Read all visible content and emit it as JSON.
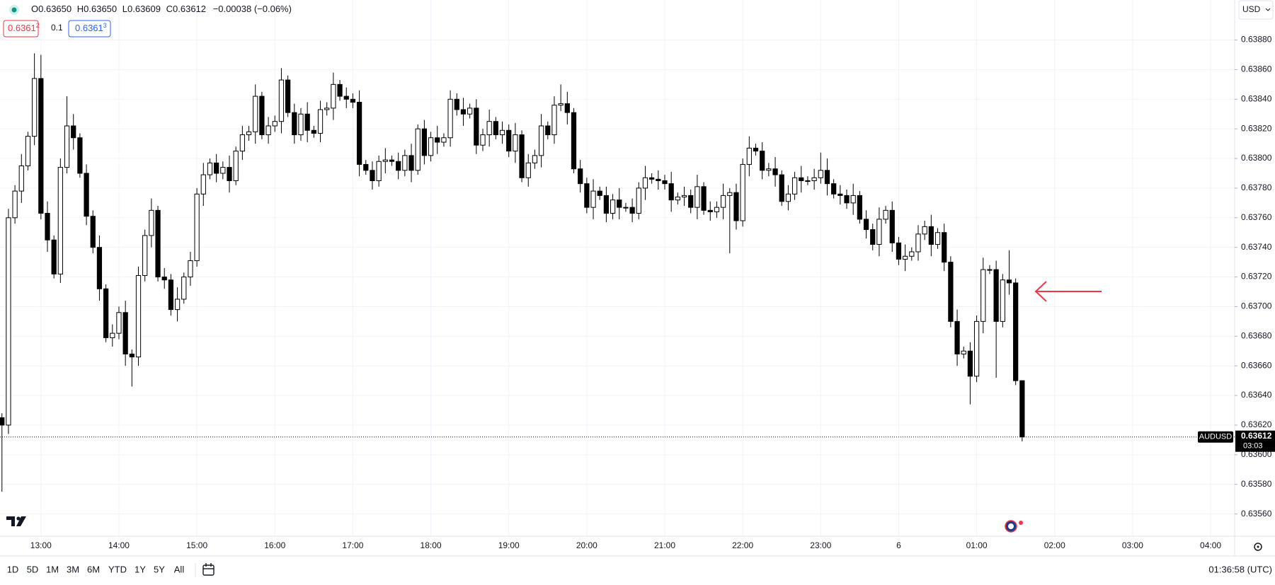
{
  "legend": [
    [
      "O",
      "0.63650"
    ],
    [
      "H",
      "0.63650"
    ],
    [
      "L",
      "0.63609"
    ],
    [
      "C",
      "0.63612"
    ]
  ],
  "change": "−0.00038 (−0.06%)",
  "badges": {
    "sell": {
      "main": "0.6361",
      "sup": "2"
    },
    "spread": "0.1",
    "buy": {
      "main": "0.6361",
      "sup": "3"
    }
  },
  "currency": "USD",
  "symbol": "AUDUSD",
  "countdown": "03:03",
  "ranges": [
    "1D",
    "5D",
    "1M",
    "3M",
    "6M",
    "YTD",
    "1Y",
    "5Y",
    "All"
  ],
  "clock": "01:36:58 (UTC)",
  "chart_data": {
    "type": "candlestick",
    "up_color": "#ffffff",
    "down_color": "#000000",
    "wick_color": "#000000",
    "grid": true,
    "last_price": 0.63612,
    "ylim": [
      0.63545,
      0.63907
    ],
    "yticks": [
      {
        "value": 0.6356,
        "label": "0.63560"
      },
      {
        "value": 0.6358,
        "label": "0.63580"
      },
      {
        "value": 0.636,
        "label": "0.63600"
      },
      {
        "value": 0.6362,
        "label": "0.63620"
      },
      {
        "value": 0.6364,
        "label": "0.63640"
      },
      {
        "value": 0.6366,
        "label": "0.63660"
      },
      {
        "value": 0.6368,
        "label": "0.63680"
      },
      {
        "value": 0.637,
        "label": "0.63700"
      },
      {
        "value": 0.6372,
        "label": "0.63720"
      },
      {
        "value": 0.6374,
        "label": "0.63740"
      },
      {
        "value": 0.6376,
        "label": "0.63760"
      },
      {
        "value": 0.6378,
        "label": "0.63780"
      },
      {
        "value": 0.638,
        "label": "0.63800"
      },
      {
        "value": 0.6382,
        "label": "0.63820"
      },
      {
        "value": 0.6384,
        "label": "0.63840"
      },
      {
        "value": 0.6386,
        "label": "0.63860"
      },
      {
        "value": 0.6388,
        "label": "0.63880"
      }
    ],
    "categories": [
      null,
      null,
      null,
      null,
      null,
      null,
      "13:00",
      null,
      null,
      null,
      null,
      null,
      null,
      null,
      null,
      null,
      null,
      null,
      "14:00",
      null,
      null,
      null,
      null,
      null,
      null,
      null,
      null,
      null,
      null,
      null,
      "15:00",
      null,
      null,
      null,
      null,
      null,
      null,
      null,
      null,
      null,
      null,
      null,
      "16:00",
      null,
      null,
      null,
      null,
      null,
      null,
      null,
      null,
      null,
      null,
      null,
      "17:00",
      null,
      null,
      null,
      null,
      null,
      null,
      null,
      null,
      null,
      null,
      null,
      "18:00",
      null,
      null,
      null,
      null,
      null,
      null,
      null,
      null,
      null,
      null,
      null,
      "19:00",
      null,
      null,
      null,
      null,
      null,
      null,
      null,
      null,
      null,
      null,
      null,
      "20:00",
      null,
      null,
      null,
      null,
      null,
      null,
      null,
      null,
      null,
      null,
      null,
      "21:00",
      null,
      null,
      null,
      null,
      null,
      null,
      null,
      null,
      null,
      null,
      null,
      "22:00",
      null,
      null,
      null,
      null,
      null,
      null,
      null,
      null,
      null,
      null,
      null,
      "23:00",
      null,
      null,
      null,
      null,
      null,
      null,
      null,
      null,
      null,
      null,
      null,
      "6",
      null,
      null,
      null,
      null,
      null,
      null,
      null,
      null,
      null,
      null,
      null,
      "01:00",
      null,
      null,
      null,
      null,
      null,
      null,
      null,
      null,
      null,
      null,
      null,
      "02:00",
      null,
      null,
      null,
      null,
      null,
      null,
      null,
      null,
      null,
      null,
      null,
      "03:00",
      null,
      null,
      null,
      null,
      null,
      null,
      null,
      null,
      null,
      null,
      null,
      "04:00",
      null,
      null,
      null
    ],
    "open": [
      0.63625,
      0.6362,
      0.6376,
      0.63778,
      0.63795,
      0.63815,
      0.63854,
      0.63763,
      0.63745,
      0.63722,
      0.63794,
      0.63822,
      0.63814,
      0.6379,
      0.63761,
      0.6374,
      0.63712,
      0.63679,
      0.63682,
      0.63696,
      0.63668,
      0.63666,
      0.63721,
      0.63748,
      0.63765,
      0.6372,
      0.63718,
      0.63698,
      0.63705,
      0.6372,
      0.63731,
      0.63776,
      0.63789,
      0.63797,
      0.6379,
      0.63794,
      0.63785,
      0.63805,
      0.63816,
      0.63818,
      0.63842,
      0.63816,
      0.63822,
      0.63825,
      0.63853,
      0.63831,
      0.63816,
      0.6383,
      0.63819,
      0.63817,
      0.63833,
      0.63834,
      0.6385,
      0.63842,
      0.6384,
      0.63838,
      0.63796,
      0.63792,
      0.63785,
      0.63798,
      0.63799,
      0.63798,
      0.63792,
      0.63802,
      0.63792,
      0.6382,
      0.63802,
      0.63814,
      0.63811,
      0.63814,
      0.6384,
      0.63833,
      0.6383,
      0.63834,
      0.63809,
      0.63816,
      0.63825,
      0.63816,
      0.63819,
      0.63805,
      0.63816,
      0.63787,
      0.63797,
      0.63802,
      0.63822,
      0.63816,
      0.63836,
      0.63837,
      0.63831,
      0.63793,
      0.63783,
      0.63767,
      0.63778,
      0.63775,
      0.63763,
      0.63772,
      0.63767,
      0.63767,
      0.63763,
      0.6378,
      0.63787,
      0.63786,
      0.63785,
      0.63783,
      0.63772,
      0.63774,
      0.63775,
      0.63767,
      0.63781,
      0.63765,
      0.63764,
      0.63767,
      0.63775,
      0.63777,
      0.63758,
      0.63796,
      0.63807,
      0.63805,
      0.63792,
      0.63793,
      0.63789,
      0.63771,
      0.63776,
      0.63787,
      0.63785,
      0.63785,
      0.63787,
      0.63792,
      0.63783,
      0.63776,
      0.63775,
      0.6377,
      0.63775,
      0.63759,
      0.63752,
      0.63742,
      0.63759,
      0.63765,
      0.63743,
      0.63732,
      0.63734,
      0.63737,
      0.63749,
      0.63754,
      0.63742,
      0.6375,
      0.6373,
      0.6369,
      0.63668,
      0.6367,
      0.63653,
      0.6369,
      0.63725,
      0.63725,
      0.6369,
      0.63718,
      0.63716,
      0.6365,
      null,
      null,
      null,
      null,
      null,
      null,
      null,
      null,
      null,
      null,
      null,
      null,
      null,
      null,
      null,
      null,
      null,
      null,
      null,
      null,
      null,
      null,
      null,
      null,
      null,
      null,
      null,
      null,
      null,
      null,
      null,
      null
    ],
    "high": [
      0.63628,
      0.63766,
      0.63782,
      0.63803,
      0.63818,
      0.63871,
      0.6387,
      0.63771,
      0.63748,
      0.638,
      0.63842,
      0.6383,
      0.63817,
      0.63796,
      0.63765,
      0.63748,
      0.63715,
      0.63688,
      0.637,
      0.63704,
      0.63671,
      0.63727,
      0.63752,
      0.63773,
      0.63768,
      0.63726,
      0.63722,
      0.63713,
      0.63723,
      0.63737,
      0.6378,
      0.63797,
      0.638,
      0.63803,
      0.63798,
      0.63802,
      0.63808,
      0.63822,
      0.63822,
      0.6385,
      0.63845,
      0.63828,
      0.63829,
      0.63861,
      0.63856,
      0.63837,
      0.63834,
      0.63838,
      0.63822,
      0.63839,
      0.63838,
      0.63858,
      0.63853,
      0.63848,
      0.63844,
      0.63846,
      0.63799,
      0.63798,
      0.63802,
      0.63807,
      0.63802,
      0.63804,
      0.63806,
      0.6381,
      0.63823,
      0.63826,
      0.63818,
      0.63822,
      0.63817,
      0.63846,
      0.63844,
      0.63841,
      0.63837,
      0.6384,
      0.6382,
      0.63833,
      0.63828,
      0.63825,
      0.63823,
      0.63824,
      0.63819,
      0.63803,
      0.63806,
      0.6383,
      0.63825,
      0.63842,
      0.6385,
      0.63845,
      0.63834,
      0.63799,
      0.63787,
      0.63786,
      0.63781,
      0.63781,
      0.63776,
      0.6378,
      0.6377,
      0.63773,
      0.63784,
      0.63795,
      0.6379,
      0.63792,
      0.63789,
      0.63791,
      0.63777,
      0.63781,
      0.63779,
      0.63789,
      0.63784,
      0.63771,
      0.63771,
      0.63783,
      0.6378,
      0.63783,
      0.638,
      0.63815,
      0.6381,
      0.63811,
      0.63797,
      0.63801,
      0.63792,
      0.63782,
      0.63791,
      0.63795,
      0.63788,
      0.63793,
      0.63804,
      0.638,
      0.63786,
      0.63782,
      0.63779,
      0.63783,
      0.63778,
      0.63765,
      0.63756,
      0.63767,
      0.63768,
      0.63771,
      0.63747,
      0.63742,
      0.6374,
      0.63755,
      0.63758,
      0.63762,
      0.63753,
      0.63756,
      0.63734,
      0.63698,
      0.63673,
      0.63676,
      0.63694,
      0.63733,
      0.63728,
      0.63731,
      0.63722,
      0.63738,
      0.63719,
      0.6365,
      null,
      null,
      null,
      null,
      null,
      null,
      null,
      null,
      null,
      null,
      null,
      null,
      null,
      null,
      null,
      null,
      null,
      null,
      null,
      null,
      null,
      null,
      null,
      null,
      null,
      null,
      null,
      null,
      null,
      null,
      null,
      null
    ],
    "low": [
      0.63575,
      0.63614,
      0.63756,
      0.6377,
      0.63792,
      0.63809,
      0.63759,
      0.63737,
      0.63719,
      0.63716,
      0.6379,
      0.63806,
      0.63787,
      0.63755,
      0.63736,
      0.63704,
      0.63676,
      0.63673,
      0.63678,
      0.6366,
      0.63646,
      0.6366,
      0.63717,
      0.6374,
      0.63717,
      0.63712,
      0.63694,
      0.6369,
      0.63702,
      0.63714,
      0.63727,
      0.63768,
      0.63786,
      0.63784,
      0.63786,
      0.63777,
      0.63782,
      0.63799,
      0.63812,
      0.6381,
      0.63813,
      0.6381,
      0.63818,
      0.63817,
      0.63828,
      0.6381,
      0.63812,
      0.63811,
      0.63814,
      0.63811,
      0.63829,
      0.63826,
      0.63839,
      0.63834,
      0.63834,
      0.63788,
      0.63789,
      0.63779,
      0.63781,
      0.6379,
      0.63795,
      0.63786,
      0.63788,
      0.63784,
      0.63789,
      0.63796,
      0.63798,
      0.63803,
      0.63808,
      0.63808,
      0.63829,
      0.63822,
      0.63827,
      0.63803,
      0.63805,
      0.63808,
      0.63813,
      0.6381,
      0.63801,
      0.63797,
      0.63784,
      0.63781,
      0.63793,
      0.63794,
      0.63813,
      0.6381,
      0.63832,
      0.63823,
      0.6379,
      0.63777,
      0.63763,
      0.63759,
      0.63772,
      0.63757,
      0.63759,
      0.63759,
      0.63764,
      0.63757,
      0.63759,
      0.63772,
      0.63783,
      0.63779,
      0.63779,
      0.63764,
      0.63769,
      0.63768,
      0.63763,
      0.63759,
      0.63762,
      0.63758,
      0.6376,
      0.63759,
      0.63736,
      0.63752,
      0.63754,
      0.63788,
      0.63802,
      0.63786,
      0.63788,
      0.63781,
      0.63768,
      0.63765,
      0.63772,
      0.63777,
      0.63782,
      0.63779,
      0.63783,
      0.63775,
      0.63773,
      0.63769,
      0.63766,
      0.63762,
      0.63756,
      0.63746,
      0.63738,
      0.63734,
      0.63756,
      0.63737,
      0.63728,
      0.63724,
      0.63731,
      0.63731,
      0.63745,
      0.63734,
      0.63739,
      0.63724,
      0.63686,
      0.6366,
      0.63665,
      0.63634,
      0.63649,
      0.63682,
      0.63722,
      0.63652,
      0.63686,
      0.63708,
      0.63647,
      0.63609,
      null,
      null,
      null,
      null,
      null,
      null,
      null,
      null,
      null,
      null,
      null,
      null,
      null,
      null,
      null,
      null,
      null,
      null,
      null,
      null,
      null,
      null,
      null,
      null,
      null,
      null,
      null,
      null,
      null,
      null,
      null,
      null
    ],
    "close": [
      0.6362,
      0.6376,
      0.63778,
      0.63795,
      0.63815,
      0.63854,
      0.63763,
      0.63745,
      0.63722,
      0.63794,
      0.63822,
      0.63814,
      0.6379,
      0.63761,
      0.6374,
      0.63712,
      0.63679,
      0.63682,
      0.63696,
      0.63668,
      0.63666,
      0.63721,
      0.63748,
      0.63765,
      0.6372,
      0.63718,
      0.63698,
      0.63705,
      0.6372,
      0.63731,
      0.63776,
      0.63789,
      0.63797,
      0.6379,
      0.63794,
      0.63785,
      0.63805,
      0.63816,
      0.63818,
      0.63842,
      0.63816,
      0.63822,
      0.63825,
      0.63853,
      0.63831,
      0.63816,
      0.6383,
      0.63819,
      0.63817,
      0.63833,
      0.63834,
      0.6385,
      0.63842,
      0.6384,
      0.63838,
      0.63796,
      0.63792,
      0.63785,
      0.63798,
      0.63799,
      0.63798,
      0.63792,
      0.63802,
      0.63792,
      0.6382,
      0.63802,
      0.63814,
      0.63811,
      0.63814,
      0.6384,
      0.63833,
      0.6383,
      0.63834,
      0.63809,
      0.63816,
      0.63825,
      0.63816,
      0.63819,
      0.63805,
      0.63816,
      0.63787,
      0.63797,
      0.63802,
      0.63822,
      0.63816,
      0.63836,
      0.63837,
      0.63831,
      0.63793,
      0.63783,
      0.63767,
      0.63778,
      0.63775,
      0.63763,
      0.63772,
      0.63767,
      0.63767,
      0.63763,
      0.6378,
      0.63787,
      0.63786,
      0.63785,
      0.63783,
      0.63772,
      0.63774,
      0.63775,
      0.63767,
      0.63781,
      0.63765,
      0.63764,
      0.63767,
      0.63775,
      0.63777,
      0.63758,
      0.63796,
      0.63807,
      0.63805,
      0.63792,
      0.63793,
      0.63789,
      0.63771,
      0.63776,
      0.63787,
      0.63785,
      0.63785,
      0.63787,
      0.63792,
      0.63783,
      0.63776,
      0.63775,
      0.6377,
      0.63775,
      0.63759,
      0.63752,
      0.63742,
      0.63759,
      0.63765,
      0.63743,
      0.63732,
      0.63734,
      0.63737,
      0.63749,
      0.63754,
      0.63742,
      0.6375,
      0.6373,
      0.6369,
      0.63668,
      0.6367,
      0.63653,
      0.6369,
      0.63725,
      0.63725,
      0.6369,
      0.63718,
      0.63716,
      0.6365,
      0.63612,
      null,
      null,
      null,
      null,
      null,
      null,
      null,
      null,
      null,
      null,
      null,
      null,
      null,
      null,
      null,
      null,
      null,
      null,
      null,
      null,
      null,
      null,
      null,
      null,
      null,
      null,
      null,
      null,
      null,
      null,
      null,
      null
    ]
  }
}
